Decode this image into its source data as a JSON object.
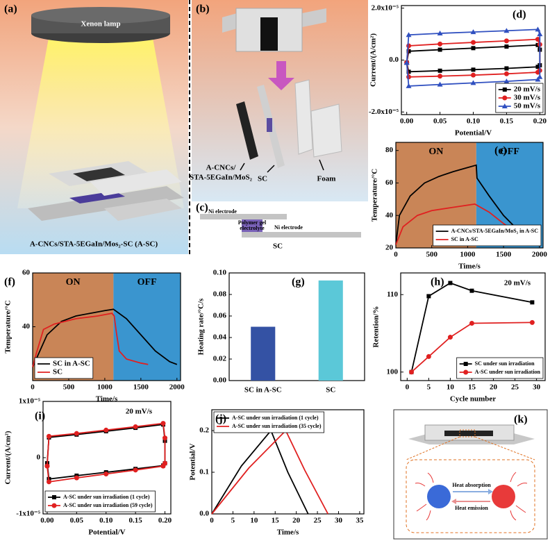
{
  "chart_data": [
    {
      "type": "line",
      "panel_label": "(d)",
      "xlabel": "Potential/V",
      "ylabel": "Current/(A/cm²)",
      "xlim": [
        -0.008,
        0.208
      ],
      "xticks": [
        {
          "value": 0,
          "label": "0.00"
        },
        0.05,
        {
          "value": 0.1,
          "label": "0.10"
        },
        0.15,
        {
          "value": 0.2,
          "label": "0.20"
        }
      ],
      "ylim": [
        -2.1e-05,
        2.1e-05
      ],
      "yticks": [
        {
          "value": -2e-05,
          "label": "-2.0x10⁻⁵"
        },
        {
          "value": 0,
          "label": "0.0"
        },
        {
          "value": 2e-05,
          "label": "2.0x10⁻⁵"
        }
      ],
      "legend": "lower right",
      "series": [
        {
          "name": "20 mV/s",
          "color": "#000000",
          "marker": "square",
          "x": [
            0,
            0.003,
            0.05,
            0.1,
            0.15,
            0.197,
            0.2,
            0.2,
            0.197,
            0.15,
            0.1,
            0.05,
            0.003,
            0
          ],
          "values": [
            -1e-06,
            3.4e-06,
            4e-06,
            4.6e-06,
            5.2e-06,
            5.8e-06,
            4e-06,
            -2e-06,
            -2.6e-06,
            -3.2e-06,
            -3.7e-06,
            -4.1e-06,
            -4.5e-06,
            -1e-06
          ]
        },
        {
          "name": "30 mV/s",
          "color": "#e02020",
          "marker": "circle",
          "x": [
            0,
            0.003,
            0.05,
            0.1,
            0.15,
            0.197,
            0.2,
            0.2,
            0.197,
            0.15,
            0.1,
            0.05,
            0.003,
            0
          ],
          "values": [
            -1e-06,
            5.5e-06,
            6.2e-06,
            6.8e-06,
            7.4e-06,
            8e-06,
            6e-06,
            -4e-06,
            -4.7e-06,
            -5.3e-06,
            -5.8e-06,
            -6.2e-06,
            -6.5e-06,
            -1e-06
          ]
        },
        {
          "name": "50 mV/s",
          "color": "#3050c0",
          "marker": "triangle",
          "x": [
            0,
            0.003,
            0.05,
            0.1,
            0.15,
            0.197,
            0.2,
            0.2,
            0.197,
            0.15,
            0.1,
            0.05,
            0.003,
            0
          ],
          "values": [
            -1e-06,
            9.7e-06,
            1.03e-05,
            1.08e-05,
            1.13e-05,
            1.18e-05,
            1e-05,
            -6.5e-06,
            -7.5e-06,
            -8.2e-06,
            -8.8e-06,
            -9.4e-06,
            -1e-05,
            -1e-06
          ]
        }
      ]
    },
    {
      "type": "line",
      "panel_label": "(e)",
      "xlabel": "Time/s",
      "ylabel": "Temperature/°C",
      "xlim": [
        0,
        2050
      ],
      "xticks": [
        0,
        500,
        1000,
        1500,
        2000
      ],
      "ylim": [
        20,
        85
      ],
      "yticks": [
        20,
        40,
        60,
        80
      ],
      "legend": "lower right",
      "regions": [
        {
          "label": "ON",
          "from": 0,
          "to": 1120,
          "color": "#c98557"
        },
        {
          "label": "OFF",
          "from": 1120,
          "to": 2050,
          "color": "#3a95cf"
        }
      ],
      "series": [
        {
          "name": "A-CNCs/STA-5EGaIn/MoS₂ in A-SC",
          "color": "#000000",
          "x": [
            0,
            50,
            200,
            400,
            600,
            800,
            1000,
            1120,
            1130,
            1300,
            1500,
            1700,
            1900,
            2000
          ],
          "values": [
            22,
            40,
            52,
            60,
            64,
            67,
            69.5,
            71,
            63,
            52,
            40,
            31,
            27,
            26
          ]
        },
        {
          "name": "SC in A-SC",
          "color": "#e02020",
          "x": [
            0,
            100,
            300,
            500,
            800,
            1100,
            1300,
            1500,
            1700,
            1900,
            2000
          ],
          "values": [
            22,
            33,
            40,
            43,
            45,
            47,
            42,
            35,
            29,
            26,
            25
          ]
        }
      ]
    },
    {
      "type": "line",
      "panel_label": "(f)",
      "xlabel": "Time/s",
      "ylabel": "Temperature/°C",
      "xlim": [
        0,
        2050
      ],
      "xticks": [
        0,
        500,
        1000,
        1500,
        2000
      ],
      "ylim": [
        20,
        60
      ],
      "yticks": [
        40,
        60
      ],
      "legend": "lower left",
      "regions": [
        {
          "label": "ON",
          "from": 0,
          "to": 1120,
          "color": "#c98557"
        },
        {
          "label": "OFF",
          "from": 1120,
          "to": 2050,
          "color": "#3a95cf"
        }
      ],
      "series": [
        {
          "name": "SC in A-SC",
          "color": "#000000",
          "x": [
            0,
            50,
            200,
            400,
            600,
            800,
            1000,
            1120,
            1300,
            1500,
            1700,
            1900,
            2000
          ],
          "values": [
            25,
            28,
            37,
            42,
            44,
            45,
            46,
            46.5,
            43,
            37,
            31,
            27,
            26
          ]
        },
        {
          "name": "SC",
          "color": "#e02020",
          "x": [
            0,
            50,
            150,
            300,
            600,
            900,
            1100,
            1130,
            1160,
            1200,
            1300,
            1500,
            1600
          ],
          "values": [
            25,
            30,
            39,
            41,
            43,
            44,
            45,
            44,
            38,
            31,
            28,
            26.5,
            26
          ]
        }
      ]
    },
    {
      "type": "bar",
      "panel_label": "(g)",
      "ylabel": "Heating rate/°C/s",
      "categories": [
        "SC in A-SC",
        "SC"
      ],
      "values": [
        0.05,
        0.093
      ],
      "colors": [
        "#3452a4",
        "#5bc8d8"
      ],
      "ylim": [
        0,
        0.1
      ],
      "yticks": [
        {
          "value": 0,
          "label": "0.00"
        },
        0.02,
        0.04,
        0.06,
        0.08,
        {
          "value": 0.1,
          "label": "0.10"
        }
      ]
    },
    {
      "type": "line",
      "panel_label": "(h)",
      "xlabel": "Cycle number",
      "ylabel": "Retention/%",
      "annotation": "20 mV/s",
      "xlim": [
        -1.5,
        32
      ],
      "xticks": [
        0,
        5,
        10,
        15,
        20,
        25,
        30
      ],
      "ylim": [
        98.9,
        112.8
      ],
      "yticks": [
        100,
        110
      ],
      "legend": "lower right",
      "series": [
        {
          "name": "SC under sun irradiation",
          "color": "#000000",
          "marker": "square",
          "x": [
            1,
            5,
            10,
            15,
            29
          ],
          "values": [
            100,
            109.8,
            111.5,
            110.5,
            109
          ]
        },
        {
          "name": "A-SC under sun irradiation",
          "color": "#e02020",
          "marker": "circle",
          "x": [
            1,
            5,
            10,
            15,
            29
          ],
          "values": [
            100,
            102,
            104.5,
            106.3,
            106.4
          ]
        }
      ]
    },
    {
      "type": "line",
      "panel_label": "(i)",
      "xlabel": "Potential/V",
      "ylabel": "Current/(A/cm²)",
      "annotation": "20 mV/s",
      "xlim": [
        -0.007,
        0.21
      ],
      "xticks": [
        {
          "value": 0,
          "label": "0.00"
        },
        0.05,
        {
          "value": 0.1,
          "label": "0.10"
        },
        0.15,
        {
          "value": 0.2,
          "label": "0.20"
        }
      ],
      "ylim": [
        -1e-05,
        1e-05
      ],
      "yticks": [
        {
          "value": -1e-05,
          "label": "-1x10⁻⁵"
        },
        0,
        {
          "value": 1e-05,
          "label": "1x10⁻⁵"
        }
      ],
      "legend": "lower left",
      "series": [
        {
          "name": "A-SC under sun irradiation (1 cycle)",
          "color": "#000000",
          "marker": "square",
          "x": [
            0,
            0.003,
            0.05,
            0.1,
            0.15,
            0.197,
            0.2,
            0.2,
            0.197,
            0.15,
            0.1,
            0.05,
            0.003,
            0
          ],
          "values": [
            -1e-06,
            3.6e-06,
            4.1e-06,
            4.7e-06,
            5.3e-06,
            5.9e-06,
            3e-06,
            -1e-06,
            -1.4e-06,
            -2e-06,
            -2.6e-06,
            -3.2e-06,
            -3.8e-06,
            -1e-06
          ]
        },
        {
          "name": "A-SC under sun irradiation (59 cycle)",
          "color": "#e02020",
          "marker": "circle",
          "x": [
            0,
            0.003,
            0.05,
            0.1,
            0.15,
            0.197,
            0.2,
            0.2,
            0.197,
            0.15,
            0.1,
            0.05,
            0.003,
            0
          ],
          "values": [
            -1.5e-06,
            3.8e-06,
            4.3e-06,
            4.9e-06,
            5.5e-06,
            6.1e-06,
            3.5e-06,
            -1e-06,
            -1.5e-06,
            -2.2e-06,
            -2.9e-06,
            -3.6e-06,
            -4.3e-06,
            -1.5e-06
          ]
        }
      ]
    },
    {
      "type": "line",
      "panel_label": "(j)",
      "xlabel": "Time/s",
      "ylabel": "Potential/V",
      "xlim": [
        0,
        36
      ],
      "xticks": [
        0,
        5,
        10,
        15,
        20,
        25,
        30,
        35
      ],
      "ylim": [
        0,
        0.25
      ],
      "yticks": [
        {
          "value": 0,
          "label": "0.0"
        },
        0.1,
        0.2
      ],
      "legend": "upper left",
      "series": [
        {
          "name": "A-SC under sun irradiation (1 cycle)",
          "color": "#000000",
          "x": [
            0,
            7,
            14,
            18,
            22.8
          ],
          "values": [
            0,
            0.115,
            0.2,
            0.1,
            0
          ]
        },
        {
          "name": "A-SC under sun irradiation (35 cycle)",
          "color": "#e02020",
          "x": [
            0,
            8.75,
            17.5,
            22,
            27.5
          ],
          "values": [
            0,
            0.11,
            0.2,
            0.105,
            0
          ]
        }
      ]
    }
  ],
  "diagrams": {
    "a": {
      "label": "(a)",
      "lamp": "Xenon lamp",
      "caption": "A-CNCs/STA-5EGaIn/Mos₂-SC (A-SC)"
    },
    "b": {
      "label": "(b)",
      "active_1": "A-CNCs/",
      "active_2": "STA-5EGaIn/MoS₂",
      "sc": "SC",
      "foam": "Foam"
    },
    "c": {
      "label": "(c)",
      "electrode_top": "Ni electrode",
      "electrolyte_1": "Polymer gel",
      "electrolyte_2": "electrolyte",
      "electrode_bottom": "Ni electrode",
      "caption": "SC"
    },
    "k": {
      "label": "(k)",
      "absorption": "Heat absorption",
      "emission": "Heat emission"
    }
  }
}
